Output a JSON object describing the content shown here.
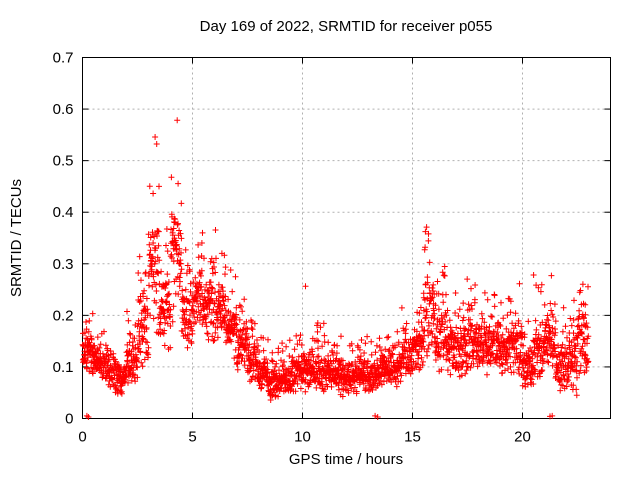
{
  "chart_data": {
    "type": "scatter",
    "title": "Day 169 of 2022, SRMTID for receiver p055",
    "xlabel": "GPS time / hours",
    "ylabel": "SRMTID / TECUs",
    "xlim": [
      0,
      24
    ],
    "ylim": [
      0,
      0.7
    ],
    "xticks": [
      [
        0,
        "0"
      ],
      [
        5,
        "5"
      ],
      [
        10,
        "10"
      ],
      [
        15,
        "15"
      ],
      [
        20,
        "20"
      ]
    ],
    "yticks": [
      [
        0,
        "0"
      ],
      [
        0.1,
        "0.1"
      ],
      [
        0.2,
        "0.2"
      ],
      [
        0.3,
        "0.3"
      ],
      [
        0.4,
        "0.4"
      ],
      [
        0.5,
        "0.5"
      ],
      [
        0.6,
        "0.6"
      ],
      [
        0.7,
        "0.7"
      ]
    ],
    "grid": "on",
    "legend": "none",
    "marker": "plus",
    "colors": {
      "points": "#ff0000",
      "grid": "#b0b0b0",
      "axis": "#000000",
      "background": "#ffffff"
    },
    "series": [
      {
        "name": "SRMTID",
        "x_data_start": 0.0,
        "x_data_end": 23.0,
        "sampling_bin_hours": 0.5,
        "points_per_bin": 60,
        "envelope_columns": [
          "x_start",
          "band_low",
          "band_high",
          "tail_max"
        ],
        "envelope": [
          [
            0.0,
            0.08,
            0.18,
            0.21
          ],
          [
            0.5,
            0.07,
            0.15,
            0.18
          ],
          [
            1.0,
            0.06,
            0.14,
            0.17
          ],
          [
            1.5,
            0.04,
            0.12,
            0.16
          ],
          [
            2.0,
            0.06,
            0.16,
            0.22
          ],
          [
            2.5,
            0.09,
            0.28,
            0.35
          ],
          [
            3.0,
            0.15,
            0.45,
            0.6
          ],
          [
            3.5,
            0.13,
            0.3,
            0.38
          ],
          [
            4.0,
            0.18,
            0.45,
            0.61
          ],
          [
            4.5,
            0.13,
            0.28,
            0.33
          ],
          [
            5.0,
            0.17,
            0.32,
            0.37
          ],
          [
            5.5,
            0.14,
            0.29,
            0.33
          ],
          [
            6.0,
            0.13,
            0.28,
            0.37
          ],
          [
            6.5,
            0.11,
            0.24,
            0.3
          ],
          [
            7.0,
            0.09,
            0.2,
            0.28
          ],
          [
            7.5,
            0.06,
            0.15,
            0.21
          ],
          [
            8.0,
            0.05,
            0.13,
            0.17
          ],
          [
            8.5,
            0.03,
            0.11,
            0.15
          ],
          [
            9.0,
            0.04,
            0.12,
            0.16
          ],
          [
            9.5,
            0.05,
            0.13,
            0.23
          ],
          [
            10.0,
            0.05,
            0.14,
            0.26
          ],
          [
            10.5,
            0.05,
            0.13,
            0.19
          ],
          [
            11.0,
            0.05,
            0.13,
            0.17
          ],
          [
            11.5,
            0.04,
            0.12,
            0.16
          ],
          [
            12.0,
            0.04,
            0.12,
            0.15
          ],
          [
            12.5,
            0.05,
            0.13,
            0.17
          ],
          [
            13.0,
            0.05,
            0.12,
            0.15
          ],
          [
            13.5,
            0.06,
            0.13,
            0.16
          ],
          [
            14.0,
            0.06,
            0.14,
            0.18
          ],
          [
            14.5,
            0.07,
            0.17,
            0.22
          ],
          [
            15.0,
            0.08,
            0.2,
            0.25
          ],
          [
            15.5,
            0.12,
            0.32,
            0.385
          ],
          [
            16.0,
            0.09,
            0.24,
            0.3
          ],
          [
            16.5,
            0.08,
            0.2,
            0.25
          ],
          [
            17.0,
            0.07,
            0.19,
            0.28
          ],
          [
            17.5,
            0.09,
            0.21,
            0.26
          ],
          [
            18.0,
            0.08,
            0.21,
            0.28
          ],
          [
            18.5,
            0.09,
            0.21,
            0.26
          ],
          [
            19.0,
            0.07,
            0.19,
            0.24
          ],
          [
            19.5,
            0.08,
            0.2,
            0.28
          ],
          [
            20.0,
            0.05,
            0.15,
            0.19
          ],
          [
            20.5,
            0.07,
            0.2,
            0.3
          ],
          [
            21.0,
            0.08,
            0.22,
            0.28
          ],
          [
            21.5,
            0.05,
            0.15,
            0.22
          ],
          [
            22.0,
            0.04,
            0.18,
            0.31
          ],
          [
            22.5,
            0.08,
            0.22,
            0.3
          ]
        ],
        "floor_points": [
          [
            0.2,
            0.005
          ],
          [
            0.27,
            0.003
          ],
          [
            13.3,
            0.005
          ],
          [
            13.42,
            0.003
          ],
          [
            21.25,
            0.004
          ],
          [
            21.35,
            0.005
          ]
        ]
      }
    ]
  }
}
